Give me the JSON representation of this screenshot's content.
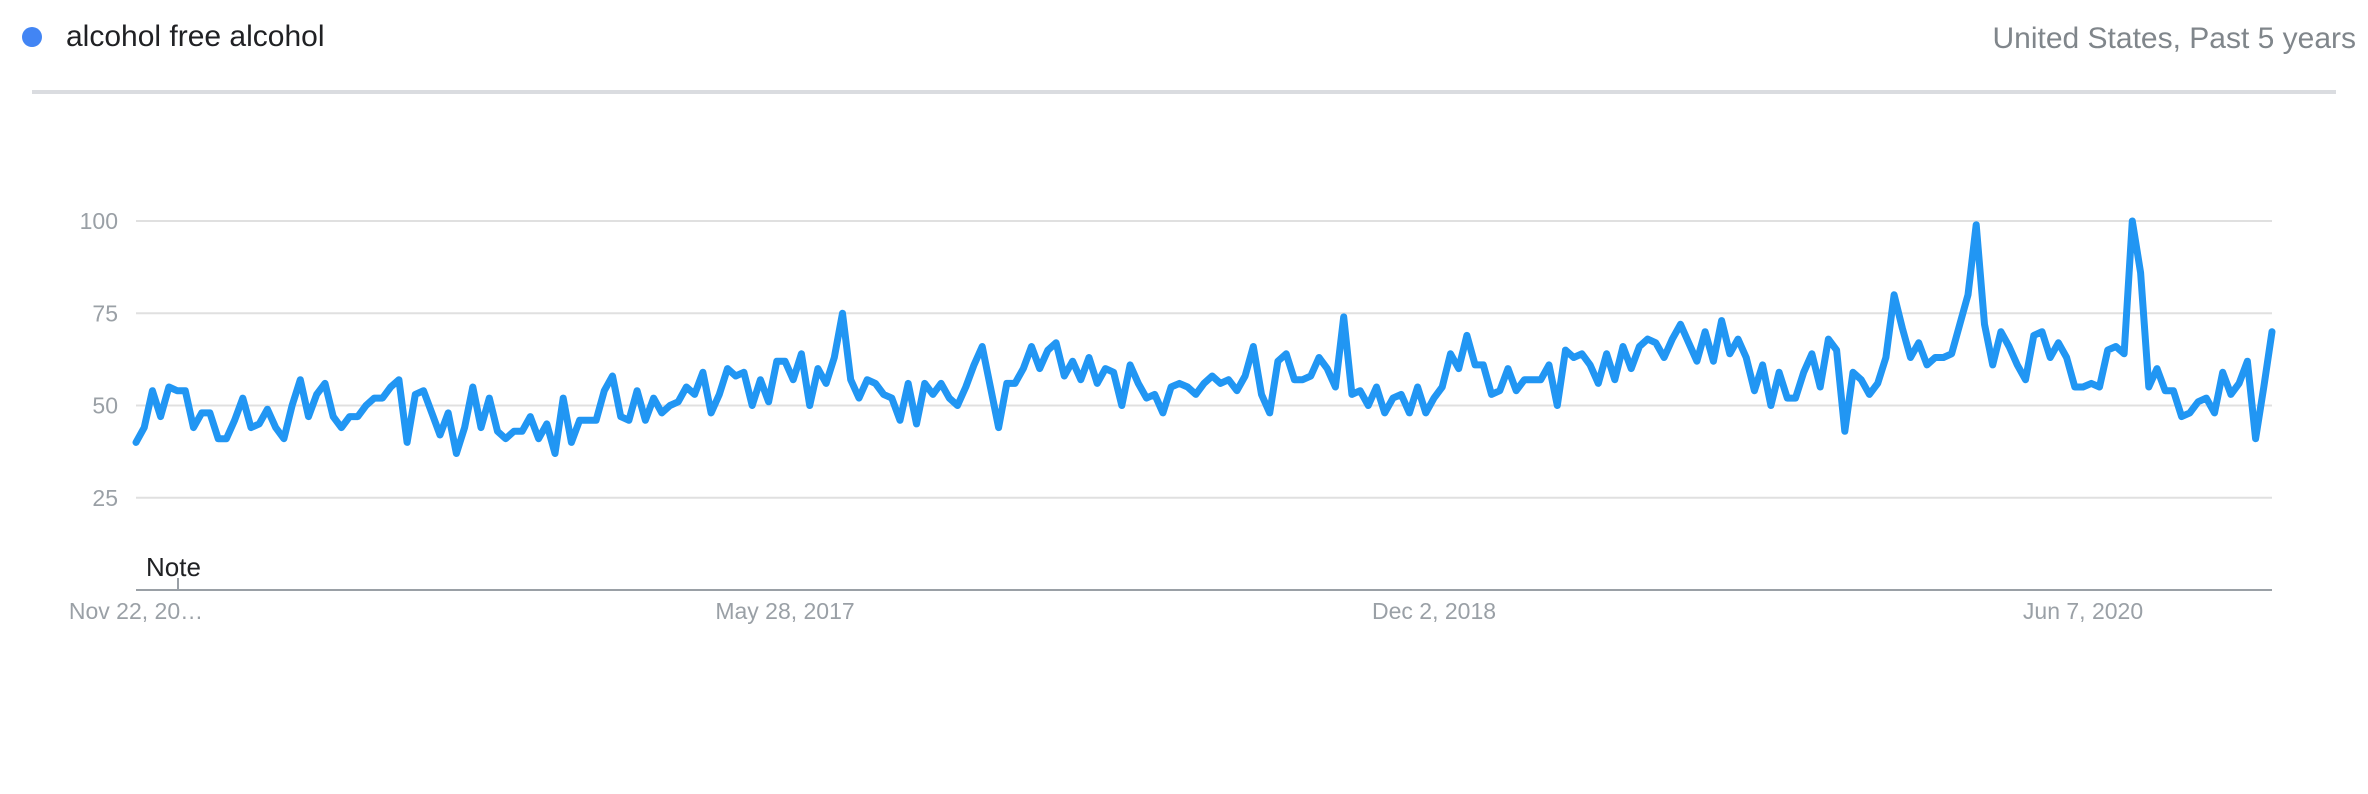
{
  "legend": {
    "term": "alcohol free alcohol",
    "color": "#4285f4"
  },
  "context": "United States, Past 5 years",
  "note_label": "Note",
  "chart_data": {
    "type": "line",
    "title": "",
    "xlabel": "",
    "ylabel": "",
    "ylim": [
      0,
      100
    ],
    "yticks": [
      25,
      50,
      75,
      100
    ],
    "grid": true,
    "x_range": [
      "2015-11-22",
      "2020-11-15"
    ],
    "x_tick_labels": [
      {
        "label": "Nov 22, 20…",
        "date": "2015-11-22"
      },
      {
        "label": "May 28, 2017",
        "date": "2017-05-28"
      },
      {
        "label": "Dec 2, 2018",
        "date": "2018-12-02"
      },
      {
        "label": "Jun 7, 2020",
        "date": "2020-06-07"
      }
    ],
    "series": [
      {
        "name": "alcohol free alcohol",
        "color": "#2196f3",
        "start_date": "2015-11-22",
        "interval": "weekly",
        "values": [
          40,
          44,
          54,
          47,
          55,
          54,
          54,
          44,
          48,
          48,
          41,
          41,
          46,
          52,
          44,
          45,
          49,
          44,
          41,
          50,
          57,
          47,
          53,
          56,
          47,
          44,
          47,
          47,
          50,
          52,
          52,
          55,
          57,
          40,
          53,
          54,
          48,
          42,
          48,
          37,
          44,
          55,
          44,
          52,
          43,
          41,
          43,
          43,
          47,
          41,
          45,
          37,
          52,
          40,
          46,
          46,
          46,
          54,
          58,
          47,
          46,
          54,
          46,
          52,
          48,
          50,
          51,
          55,
          53,
          59,
          48,
          53,
          60,
          58,
          59,
          50,
          57,
          51,
          62,
          62,
          57,
          64,
          50,
          60,
          56,
          63,
          75,
          57,
          52,
          57,
          56,
          53,
          52,
          46,
          56,
          45,
          56,
          53,
          56,
          52,
          50,
          55,
          61,
          66,
          55,
          44,
          56,
          56,
          60,
          66,
          60,
          65,
          67,
          58,
          62,
          57,
          63,
          56,
          60,
          59,
          50,
          61,
          56,
          52,
          53,
          48,
          55,
          56,
          55,
          53,
          56,
          58,
          56,
          57,
          54,
          58,
          66,
          53,
          48,
          62,
          64,
          57,
          57,
          58,
          63,
          60,
          55,
          74,
          53,
          54,
          50,
          55,
          48,
          52,
          53,
          48,
          55,
          48,
          52,
          55,
          64,
          60,
          69,
          61,
          61,
          53,
          54,
          60,
          54,
          57,
          57,
          57,
          61,
          50,
          65,
          63,
          64,
          61,
          56,
          64,
          57,
          66,
          60,
          66,
          68,
          67,
          63,
          68,
          72,
          67,
          62,
          70,
          62,
          73,
          64,
          68,
          63,
          54,
          61,
          50,
          59,
          52,
          52,
          59,
          64,
          55,
          68,
          65,
          43,
          59,
          57,
          53,
          56,
          63,
          80,
          71,
          63,
          67,
          61,
          63,
          63,
          64,
          72,
          80,
          99,
          72,
          61,
          70,
          66,
          61,
          57,
          69,
          70,
          63,
          67,
          63,
          55,
          55,
          56,
          55,
          65,
          66,
          64,
          100,
          86,
          55,
          60,
          54,
          54,
          47,
          48,
          51,
          52,
          48,
          59,
          53,
          56,
          62,
          41,
          55,
          70
        ]
      }
    ]
  }
}
